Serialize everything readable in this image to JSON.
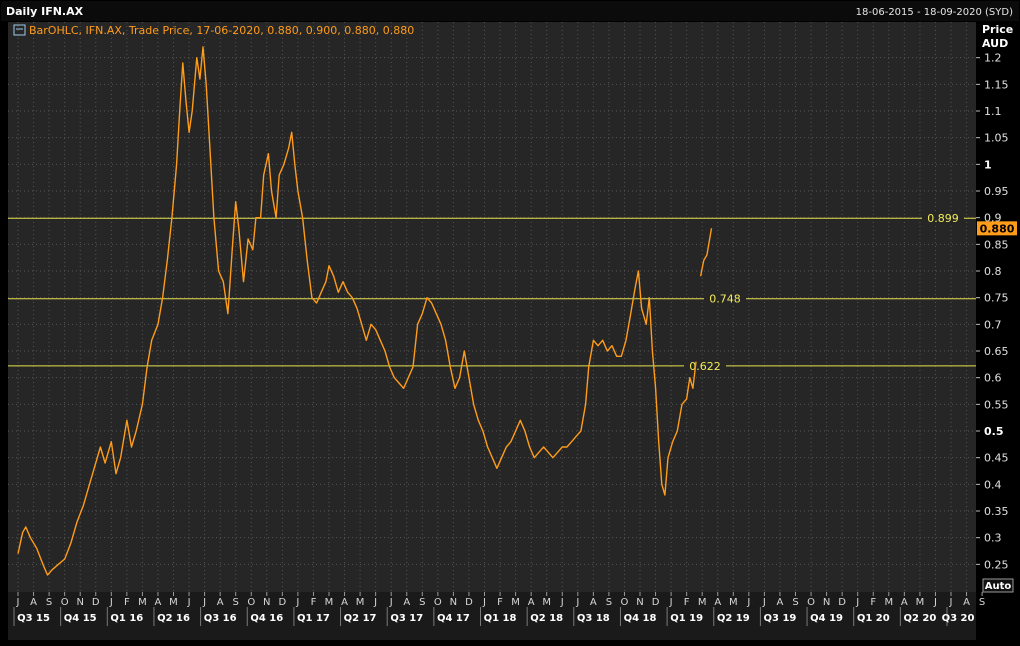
{
  "window": {
    "title": "Daily IFN.AX",
    "date_range": "18-06-2015 - 18-09-2020 (SYD)"
  },
  "legend": {
    "text": "BarOHLC, IFN.AX, Trade Price, 17-06-2020, 0.880, 0.900, 0.880, 0.880",
    "icon": "series-settings-icon"
  },
  "axis": {
    "y_title_line1": "Price",
    "y_title_line2": "AUD",
    "auto_button": "Auto"
  },
  "colors": {
    "background": "#262626",
    "grid": "#555555",
    "series": "#ff9c1a",
    "hlines": "#e6e14a",
    "current_price_bg": "#ff9c1a"
  },
  "chart_data": {
    "type": "line",
    "title": "Daily IFN.AX",
    "ylabel": "Price AUD",
    "ylim": [
      0.2,
      1.25
    ],
    "yticks": [
      0.25,
      0.3,
      0.35,
      0.4,
      0.45,
      0.5,
      0.55,
      0.6,
      0.65,
      0.7,
      0.75,
      0.8,
      0.85,
      0.9,
      0.95,
      1,
      1.05,
      1.1,
      1.15,
      1.2
    ],
    "ytick_labels": [
      "0.25",
      "0.3",
      "0.35",
      "0.4",
      "0.45",
      "0.5",
      "0.55",
      "0.6",
      "0.65",
      "0.7",
      "0.75",
      "0.8",
      "0.85",
      "0.9",
      "0.95",
      "1",
      "1.05",
      "1.1",
      "1.15",
      "1.2"
    ],
    "bold_ticks": [
      0.5,
      1
    ],
    "grid": true,
    "months": [
      "J",
      "A",
      "S",
      "O",
      "N",
      "D",
      "J",
      "F",
      "M",
      "A",
      "M",
      "J",
      "J",
      "A",
      "S",
      "O",
      "N",
      "D",
      "J",
      "F",
      "M",
      "A",
      "M",
      "J",
      "J",
      "A",
      "S",
      "O",
      "N",
      "D",
      "J",
      "F",
      "M",
      "A",
      "M",
      "J",
      "J",
      "A",
      "S",
      "O",
      "N",
      "D",
      "J",
      "F",
      "M",
      "A",
      "M",
      "J",
      "J",
      "A",
      "S",
      "O",
      "N",
      "D",
      "J",
      "F",
      "M",
      "A",
      "M",
      "J",
      "J",
      "A",
      "S"
    ],
    "quarters": [
      "Q3 15",
      "Q4 15",
      "Q1 16",
      "Q2 16",
      "Q3 16",
      "Q4 16",
      "Q1 17",
      "Q2 17",
      "Q3 17",
      "Q4 17",
      "Q1 18",
      "Q2 18",
      "Q3 18",
      "Q4 18",
      "Q1 19",
      "Q2 19",
      "Q3 19",
      "Q4 19",
      "Q1 20",
      "Q2 20",
      "Q3 20"
    ],
    "series": [
      {
        "name": "IFN.AX",
        "points": [
          [
            0,
            0.27
          ],
          [
            0.3,
            0.31
          ],
          [
            0.5,
            0.32
          ],
          [
            0.8,
            0.3
          ],
          [
            1.2,
            0.28
          ],
          [
            1.6,
            0.25
          ],
          [
            1.9,
            0.23
          ],
          [
            2.2,
            0.24
          ],
          [
            2.6,
            0.25
          ],
          [
            3.0,
            0.26
          ],
          [
            3.4,
            0.29
          ],
          [
            3.8,
            0.33
          ],
          [
            4.2,
            0.36
          ],
          [
            4.6,
            0.4
          ],
          [
            4.9,
            0.43
          ],
          [
            5.3,
            0.47
          ],
          [
            5.6,
            0.44
          ],
          [
            6.0,
            0.48
          ],
          [
            6.3,
            0.42
          ],
          [
            6.6,
            0.45
          ],
          [
            7.0,
            0.52
          ],
          [
            7.3,
            0.47
          ],
          [
            7.6,
            0.5
          ],
          [
            8.0,
            0.55
          ],
          [
            8.3,
            0.62
          ],
          [
            8.6,
            0.67
          ],
          [
            9.0,
            0.7
          ],
          [
            9.3,
            0.75
          ],
          [
            9.6,
            0.82
          ],
          [
            9.9,
            0.9
          ],
          [
            10.2,
            1.0
          ],
          [
            10.4,
            1.1
          ],
          [
            10.6,
            1.19
          ],
          [
            10.8,
            1.12
          ],
          [
            11.0,
            1.06
          ],
          [
            11.2,
            1.1
          ],
          [
            11.5,
            1.2
          ],
          [
            11.7,
            1.16
          ],
          [
            11.9,
            1.22
          ],
          [
            12.1,
            1.15
          ],
          [
            12.3,
            1.05
          ],
          [
            12.6,
            0.9
          ],
          [
            12.9,
            0.8
          ],
          [
            13.2,
            0.78
          ],
          [
            13.5,
            0.72
          ],
          [
            13.8,
            0.85
          ],
          [
            14.0,
            0.93
          ],
          [
            14.2,
            0.88
          ],
          [
            14.5,
            0.78
          ],
          [
            14.8,
            0.86
          ],
          [
            15.1,
            0.84
          ],
          [
            15.3,
            0.9
          ],
          [
            15.6,
            0.9
          ],
          [
            15.8,
            0.98
          ],
          [
            16.1,
            1.02
          ],
          [
            16.3,
            0.95
          ],
          [
            16.6,
            0.9
          ],
          [
            16.8,
            0.98
          ],
          [
            17.1,
            1.0
          ],
          [
            17.4,
            1.03
          ],
          [
            17.6,
            1.06
          ],
          [
            17.8,
            1.0
          ],
          [
            18.0,
            0.95
          ],
          [
            18.3,
            0.9
          ],
          [
            18.6,
            0.82
          ],
          [
            18.9,
            0.75
          ],
          [
            19.2,
            0.74
          ],
          [
            19.5,
            0.76
          ],
          [
            19.8,
            0.78
          ],
          [
            20.0,
            0.81
          ],
          [
            20.3,
            0.79
          ],
          [
            20.6,
            0.76
          ],
          [
            20.9,
            0.78
          ],
          [
            21.2,
            0.76
          ],
          [
            21.5,
            0.75
          ],
          [
            21.8,
            0.73
          ],
          [
            22.1,
            0.7
          ],
          [
            22.4,
            0.67
          ],
          [
            22.7,
            0.7
          ],
          [
            23.0,
            0.69
          ],
          [
            23.3,
            0.67
          ],
          [
            23.6,
            0.65
          ],
          [
            23.9,
            0.62
          ],
          [
            24.2,
            0.6
          ],
          [
            24.5,
            0.59
          ],
          [
            24.8,
            0.58
          ],
          [
            25.1,
            0.6
          ],
          [
            25.4,
            0.62
          ],
          [
            25.7,
            0.7
          ],
          [
            26.0,
            0.72
          ],
          [
            26.3,
            0.75
          ],
          [
            26.6,
            0.74
          ],
          [
            26.9,
            0.72
          ],
          [
            27.2,
            0.7
          ],
          [
            27.5,
            0.67
          ],
          [
            27.8,
            0.62
          ],
          [
            28.1,
            0.58
          ],
          [
            28.4,
            0.6
          ],
          [
            28.7,
            0.65
          ],
          [
            29.0,
            0.6
          ],
          [
            29.3,
            0.55
          ],
          [
            29.6,
            0.52
          ],
          [
            29.9,
            0.5
          ],
          [
            30.2,
            0.47
          ],
          [
            30.5,
            0.45
          ],
          [
            30.8,
            0.43
          ],
          [
            31.1,
            0.45
          ],
          [
            31.4,
            0.47
          ],
          [
            31.7,
            0.48
          ],
          [
            32.0,
            0.5
          ],
          [
            32.3,
            0.52
          ],
          [
            32.6,
            0.5
          ],
          [
            32.9,
            0.47
          ],
          [
            33.2,
            0.45
          ],
          [
            33.5,
            0.46
          ],
          [
            33.8,
            0.47
          ],
          [
            34.1,
            0.46
          ],
          [
            34.4,
            0.45
          ],
          [
            34.7,
            0.46
          ],
          [
            35.0,
            0.47
          ],
          [
            35.3,
            0.47
          ],
          [
            35.6,
            0.48
          ],
          [
            35.9,
            0.49
          ],
          [
            36.2,
            0.5
          ],
          [
            36.5,
            0.55
          ],
          [
            36.7,
            0.62
          ],
          [
            37.0,
            0.67
          ],
          [
            37.3,
            0.66
          ],
          [
            37.6,
            0.67
          ],
          [
            37.9,
            0.65
          ],
          [
            38.2,
            0.66
          ],
          [
            38.5,
            0.64
          ],
          [
            38.8,
            0.64
          ],
          [
            39.1,
            0.67
          ],
          [
            39.4,
            0.72
          ],
          [
            39.7,
            0.77
          ],
          [
            39.9,
            0.8
          ],
          [
            40.1,
            0.73
          ],
          [
            40.4,
            0.7
          ],
          [
            40.6,
            0.75
          ],
          [
            40.8,
            0.65
          ],
          [
            41.0,
            0.58
          ],
          [
            41.2,
            0.48
          ],
          [
            41.4,
            0.4
          ],
          [
            41.6,
            0.38
          ],
          [
            41.8,
            0.45
          ],
          [
            42.1,
            0.48
          ],
          [
            42.4,
            0.5
          ],
          [
            42.7,
            0.55
          ],
          [
            43.0,
            0.56
          ],
          [
            43.2,
            0.6
          ],
          [
            43.4,
            0.58
          ],
          [
            43.6,
            0.63
          ]
        ]
      },
      {
        "name": "IFN.AX (Jun 2020)",
        "points": [
          [
            43.9,
            0.79
          ],
          [
            44.1,
            0.82
          ],
          [
            44.3,
            0.83
          ],
          [
            44.6,
            0.88
          ]
        ]
      }
    ],
    "hlines": [
      {
        "value": 0.899,
        "label": "0.899"
      },
      {
        "value": 0.748,
        "label": "0.748"
      },
      {
        "value": 0.622,
        "label": "0.622"
      }
    ],
    "last_price": {
      "value": 0.88,
      "label": "0.880"
    }
  }
}
